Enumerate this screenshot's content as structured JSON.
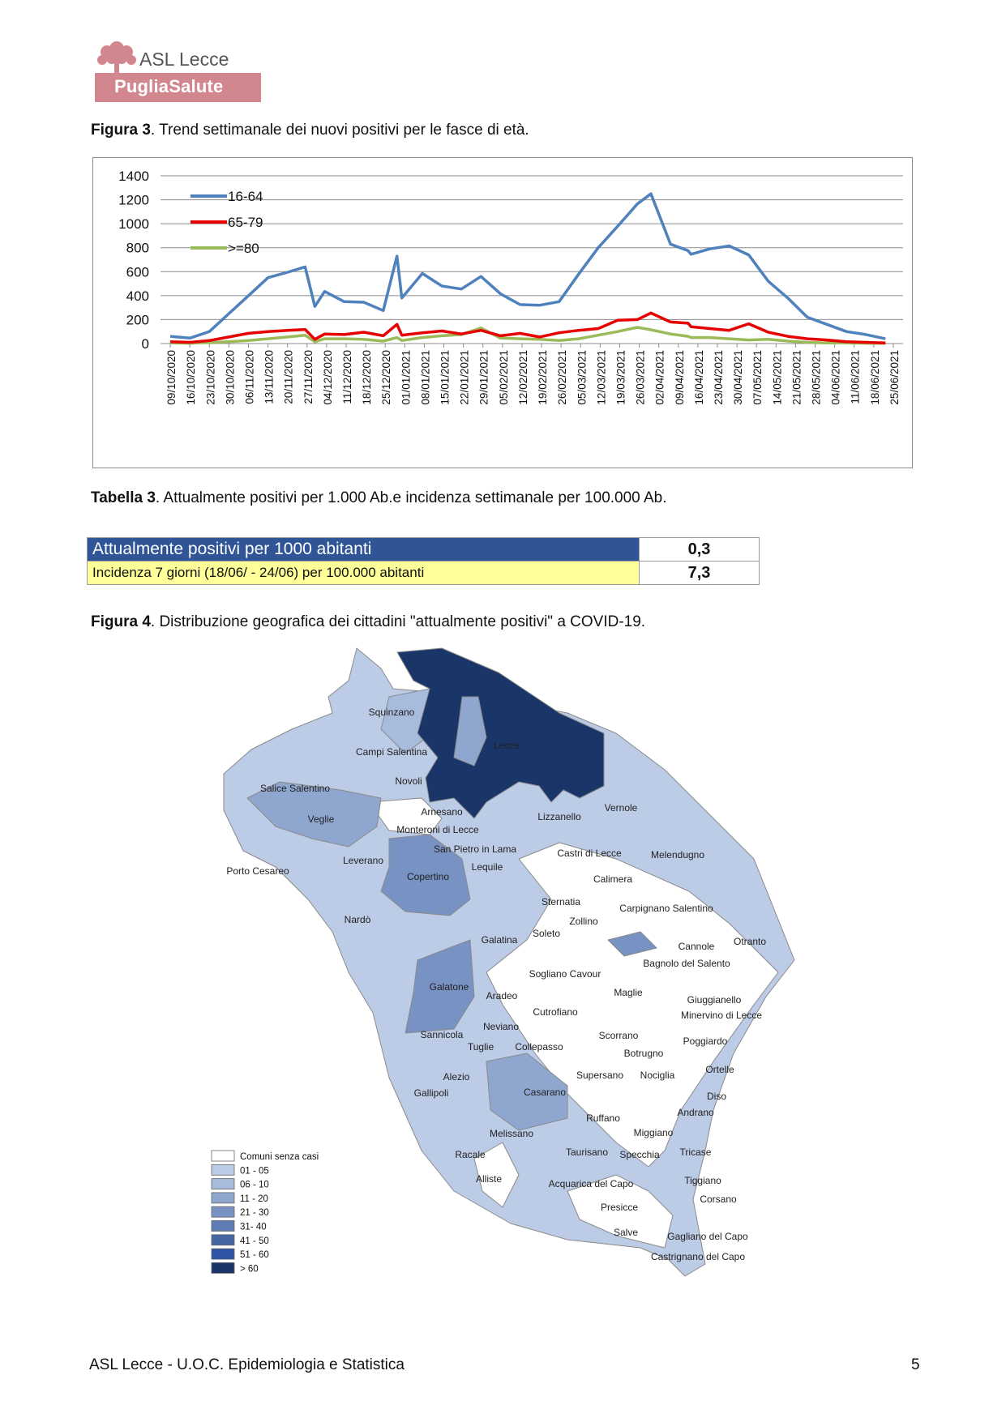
{
  "logo": {
    "org": "ASL Lecce",
    "sub": "PugliaSalute"
  },
  "fig3": {
    "label": "Figura 3",
    "text": ". Trend settimanale dei nuovi positivi per le fasce di età."
  },
  "chart_data": {
    "type": "line",
    "title": "",
    "xlabel": "",
    "ylabel": "",
    "ylim": [
      0,
      1400
    ],
    "yticks": [
      0,
      200,
      400,
      600,
      800,
      1000,
      1200,
      1400
    ],
    "grid": true,
    "legend": "top-left",
    "x": [
      "09/10/2020",
      "16/10/2020",
      "23/10/2020",
      "30/10/2020",
      "06/11/2020",
      "13/11/2020",
      "20/11/2020",
      "27/11/2020",
      "04/12/2020",
      "11/12/2020",
      "18/12/2020",
      "25/12/2020",
      "01/01/2021",
      "08/01/2021",
      "15/01/2021",
      "22/01/2021",
      "29/01/2021",
      "05/02/2021",
      "12/02/2021",
      "19/02/2021",
      "26/02/2021",
      "05/03/2021",
      "12/03/2021",
      "19/03/2021",
      "26/03/2021",
      "02/04/2021",
      "09/04/2021",
      "16/04/2021",
      "23/04/2021",
      "30/04/2021",
      "07/05/2021",
      "14/05/2021",
      "21/05/2021",
      "28/05/2021",
      "04/06/2021",
      "11/06/2021",
      "18/06/2021",
      "25/06/2021"
    ],
    "series": [
      {
        "name": "16-64",
        "color": "#4f81bd",
        "points": [
          [
            0,
            60
          ],
          [
            1,
            45
          ],
          [
            2,
            100
          ],
          [
            3,
            250
          ],
          [
            4,
            400
          ],
          [
            5,
            550
          ],
          [
            6,
            595
          ],
          [
            6.9,
            640
          ],
          [
            7.4,
            310
          ],
          [
            7.9,
            435
          ],
          [
            8.9,
            350
          ],
          [
            9.9,
            345
          ],
          [
            10.9,
            275
          ],
          [
            11.6,
            730
          ],
          [
            11.85,
            380
          ],
          [
            12.9,
            585
          ],
          [
            13.9,
            480
          ],
          [
            14.9,
            455
          ],
          [
            15.9,
            560
          ],
          [
            16.9,
            415
          ],
          [
            17.9,
            325
          ],
          [
            18.9,
            320
          ],
          [
            19.9,
            350
          ],
          [
            20.9,
            580
          ],
          [
            21.9,
            800
          ],
          [
            22.9,
            980
          ],
          [
            23.9,
            1165
          ],
          [
            24.6,
            1250
          ],
          [
            25.6,
            830
          ],
          [
            26.5,
            775
          ],
          [
            26.65,
            745
          ],
          [
            27.6,
            790
          ],
          [
            28.6,
            815
          ],
          [
            29.6,
            740
          ],
          [
            30.6,
            520
          ],
          [
            31.6,
            380
          ],
          [
            32.6,
            220
          ],
          [
            33.6,
            160
          ],
          [
            34.6,
            100
          ],
          [
            35.6,
            75
          ],
          [
            36.6,
            40
          ]
        ]
      },
      {
        "name": "65-79",
        "color": "#e60000",
        "points": [
          [
            0,
            15
          ],
          [
            1,
            10
          ],
          [
            2,
            25
          ],
          [
            3,
            55
          ],
          [
            4,
            85
          ],
          [
            5,
            100
          ],
          [
            6,
            110
          ],
          [
            6.9,
            118
          ],
          [
            7.4,
            35
          ],
          [
            7.9,
            80
          ],
          [
            8.9,
            75
          ],
          [
            9.9,
            95
          ],
          [
            10.9,
            65
          ],
          [
            11.6,
            160
          ],
          [
            11.85,
            70
          ],
          [
            12.9,
            90
          ],
          [
            13.9,
            105
          ],
          [
            14.9,
            80
          ],
          [
            15.9,
            110
          ],
          [
            16.9,
            65
          ],
          [
            17.9,
            85
          ],
          [
            18.9,
            55
          ],
          [
            19.9,
            90
          ],
          [
            20.9,
            110
          ],
          [
            21.9,
            125
          ],
          [
            22.9,
            195
          ],
          [
            23.9,
            200
          ],
          [
            24.6,
            255
          ],
          [
            25.6,
            180
          ],
          [
            26.5,
            170
          ],
          [
            26.65,
            140
          ],
          [
            27.6,
            125
          ],
          [
            28.6,
            110
          ],
          [
            29.6,
            165
          ],
          [
            30.6,
            95
          ],
          [
            31.6,
            60
          ],
          [
            32.6,
            40
          ],
          [
            33.6,
            30
          ],
          [
            34.6,
            15
          ],
          [
            35.6,
            10
          ],
          [
            36.6,
            5
          ]
        ]
      },
      {
        "name": ">=80",
        "color": "#9bbb59",
        "points": [
          [
            0,
            5
          ],
          [
            1,
            3
          ],
          [
            2,
            8
          ],
          [
            3,
            15
          ],
          [
            4,
            25
          ],
          [
            5,
            40
          ],
          [
            6,
            55
          ],
          [
            6.9,
            70
          ],
          [
            7.4,
            15
          ],
          [
            7.9,
            40
          ],
          [
            8.9,
            40
          ],
          [
            9.9,
            35
          ],
          [
            10.9,
            20
          ],
          [
            11.6,
            50
          ],
          [
            11.85,
            25
          ],
          [
            12.9,
            50
          ],
          [
            13.9,
            65
          ],
          [
            14.9,
            75
          ],
          [
            15.9,
            130
          ],
          [
            16.9,
            45
          ],
          [
            17.9,
            40
          ],
          [
            18.9,
            35
          ],
          [
            19.9,
            25
          ],
          [
            20.9,
            40
          ],
          [
            21.9,
            70
          ],
          [
            22.9,
            100
          ],
          [
            23.9,
            135
          ],
          [
            24.6,
            115
          ],
          [
            25.6,
            80
          ],
          [
            26.5,
            60
          ],
          [
            26.65,
            50
          ],
          [
            27.6,
            50
          ],
          [
            28.6,
            40
          ],
          [
            29.6,
            30
          ],
          [
            30.6,
            35
          ],
          [
            31.6,
            20
          ],
          [
            32.6,
            10
          ],
          [
            33.6,
            5
          ],
          [
            34.6,
            5
          ],
          [
            35.6,
            3
          ],
          [
            36.6,
            2
          ]
        ]
      }
    ]
  },
  "tab3": {
    "label": "Tabella 3",
    "text": ". Attualmente positivi per 1.000 Ab.e incidenza settimanale per 100.000 Ab."
  },
  "table3": {
    "row1_label": "Attualmente positivi per 1000 abitanti",
    "row1_value": "0,3",
    "row2_label": "Incidenza 7 giorni (18/06/ - 24/06)  per 100.000 abitanti",
    "row2_value": "7,3",
    "row1_color": "#2f5597",
    "row2_color": "#ffff99"
  },
  "fig4": {
    "label": "Figura 4",
    "text": ". Distribuzione  geografica dei cittadini \"attualmente positivi\" a COVID-19."
  },
  "map": {
    "towns": [
      "Squinzano",
      "Campi Salentina",
      "Lecce",
      "Novoli",
      "Salice Salentino",
      "Veglie",
      "Arnesano",
      "Monteroni di Lecce",
      "Lizzanello",
      "Vernole",
      "Castri di Lecce",
      "Melendugno",
      "San Pietro in Lama",
      "Lequile",
      "Leverano",
      "Porto Cesareo",
      "Copertino",
      "Calimera",
      "Sternatia",
      "Carpignano Salentino",
      "Zollino",
      "Nardò",
      "Soleto",
      "Galatina",
      "Cannole",
      "Otranto",
      "Bagnolo del Salento",
      "Sogliano Cavour",
      "Galatone",
      "Aradeo",
      "Maglie",
      "Giuggianello",
      "Cutrofiano",
      "Minervino di Lecce",
      "Neviano",
      "Sannicola",
      "Scorrano",
      "Tuglie",
      "Collepasso",
      "Poggiardo",
      "Botrugno",
      "Alezio",
      "Supersano",
      "Nociglia",
      "Ortelle",
      "Gallipoli",
      "Casarano",
      "Diso",
      "Andrano",
      "Ruffano",
      "Miggiano",
      "Melissano",
      "Taurisano",
      "Specchia",
      "Tricase",
      "Racale",
      "Alliste",
      "Acquarica del Capo",
      "Tiggiano",
      "Corsano",
      "Presicce",
      "Salve",
      "Gagliano del Capo",
      "Castrignano del Capo"
    ],
    "legend": [
      {
        "label": "Comuni senza casi",
        "color": "#ffffff"
      },
      {
        "label": "01 - 05",
        "color": "#bccbe6"
      },
      {
        "label": "06 - 10",
        "color": "#a7bbdd"
      },
      {
        "label": "11 - 20",
        "color": "#8fa6cf"
      },
      {
        "label": "21 - 30",
        "color": "#7892c3"
      },
      {
        "label": "31- 40",
        "color": "#5f7db5"
      },
      {
        "label": "41 - 50",
        "color": "#4566a3"
      },
      {
        "label": "51 - 60",
        "color": "#2e54a6"
      },
      {
        "label": "> 60",
        "color": "#1a3668"
      }
    ]
  },
  "footer": {
    "text": "ASL Lecce - U.O.C. Epidemiologia e Statistica",
    "page": "5"
  }
}
